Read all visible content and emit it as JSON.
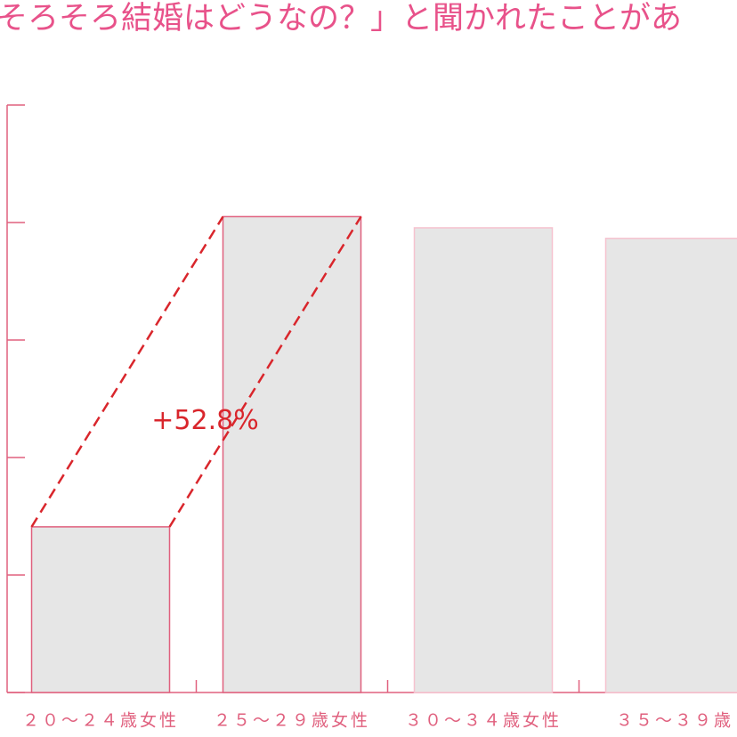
{
  "chart_data": {
    "type": "bar",
    "title": "そろそろ結婚はどうなの？」と聞かれたことがあ",
    "categories": [
      "２０～２４歳女性",
      "２５～２９歳女性",
      "３０～３４歳女性",
      "３５～３９歳"
    ],
    "values": [
      28.2,
      81.0,
      79.1,
      77.3
    ],
    "color": "#e6e6e6",
    "edge_colors": [
      "#e0607e",
      "#e0607e",
      "#f6c2cf",
      "#f6c2cf"
    ],
    "axis_color": "#e0607e",
    "annotation": "+52.8%",
    "annotation_color": "#d9262c",
    "ylim": [
      0,
      100
    ],
    "yticks": [
      0,
      20,
      40,
      60,
      80,
      100
    ]
  }
}
